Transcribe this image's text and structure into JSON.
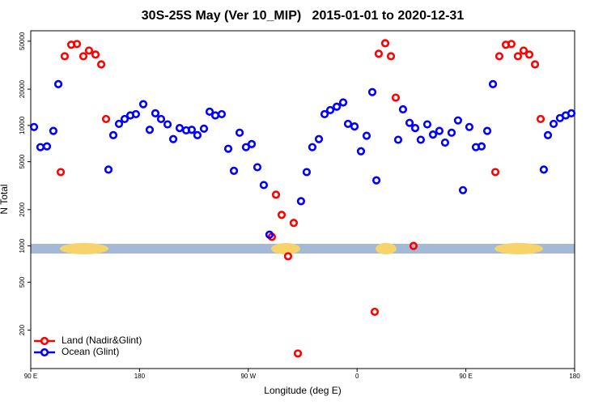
{
  "chart_data": {
    "type": "scatter",
    "title": "30S-25S May (Ver 10_MIP)   2015-01-01 to 2020-12-31",
    "x_label": "Longitude (deg E)",
    "y_label": "N Total",
    "log_y": true,
    "legend": "lower left",
    "xlim": [
      90,
      540
    ],
    "ylim": [
      96,
      61000
    ],
    "xticks": [
      {
        "value": 90,
        "label": "90 E"
      },
      {
        "value": 180,
        "label": "180"
      },
      {
        "value": 270,
        "label": "90 W"
      },
      {
        "value": 360,
        "label": "0"
      },
      {
        "value": 450,
        "label": "90 E"
      },
      {
        "value": 540,
        "label": "180"
      }
    ],
    "yticks": [
      200,
      500,
      1000,
      2000,
      5000,
      10000,
      20000,
      50000
    ],
    "series": [
      {
        "name": "Land (Nadir&Glint)",
        "color": "#ff0000",
        "x": [
          114.8,
          118.1,
          123.5,
          128.2,
          133.5,
          138.2,
          143.6,
          148.3,
          152.3,
          289.5,
          292.9,
          297.6,
          302.9,
          307.6,
          311.0,
          374.6,
          377.9,
          383.3,
          388.0,
          392.0,
          406.7,
          474.4,
          477.7,
          483.1,
          487.7,
          493.1,
          497.8,
          502.5,
          507.2,
          511.9
        ],
        "values": [
          4100,
          37500,
          46700,
          47400,
          37500,
          41800,
          38700,
          32100,
          11300,
          1190,
          2660,
          1810,
          820,
          1550,
          128,
          284,
          39300,
          48100,
          37500,
          17000,
          1000,
          4100,
          37500,
          46700,
          47400,
          37500,
          41800,
          38700,
          32100,
          11300
        ]
      },
      {
        "name": "Ocean (Glint)",
        "color": "#0000ff",
        "x": [
          92.7,
          98.0,
          103.4,
          108.7,
          112.8,
          154.3,
          158.3,
          163.0,
          167.7,
          172.4,
          177.0,
          183.1,
          188.4,
          193.1,
          197.8,
          203.2,
          207.9,
          213.2,
          218.6,
          223.2,
          227.9,
          233.3,
          238.0,
          242.7,
          248.0,
          253.4,
          258.1,
          262.8,
          268.1,
          272.8,
          277.5,
          282.8,
          287.5,
          313.6,
          318.3,
          323.0,
          328.4,
          333.1,
          337.8,
          343.2,
          348.5,
          352.5,
          357.9,
          363.2,
          367.9,
          372.6,
          376.0,
          394.0,
          398.0,
          403.4,
          408.1,
          412.7,
          418.1,
          422.8,
          428.1,
          432.8,
          438.2,
          443.5,
          447.6,
          452.9,
          458.3,
          463.0,
          467.7,
          472.4,
          514.5,
          517.9,
          522.6,
          527.9,
          532.6,
          537.3
        ],
        "values": [
          9700,
          6600,
          6700,
          9000,
          22000,
          4300,
          8300,
          10300,
          11300,
          12100,
          12400,
          15000,
          9200,
          12600,
          11300,
          10200,
          7700,
          9500,
          9100,
          9200,
          8300,
          9400,
          13000,
          12100,
          12400,
          6400,
          4200,
          8700,
          6600,
          7000,
          4500,
          3200,
          1240,
          2350,
          4100,
          6600,
          7700,
          12400,
          13400,
          14300,
          15500,
          10300,
          9800,
          6100,
          8200,
          18900,
          3500,
          7600,
          13600,
          10500,
          9500,
          7600,
          10200,
          8400,
          9000,
          7200,
          8700,
          11000,
          2900,
          9700,
          6600,
          6700,
          9000,
          22000,
          4300,
          8300,
          10300,
          11500,
          12100,
          12600
        ]
      }
    ]
  }
}
